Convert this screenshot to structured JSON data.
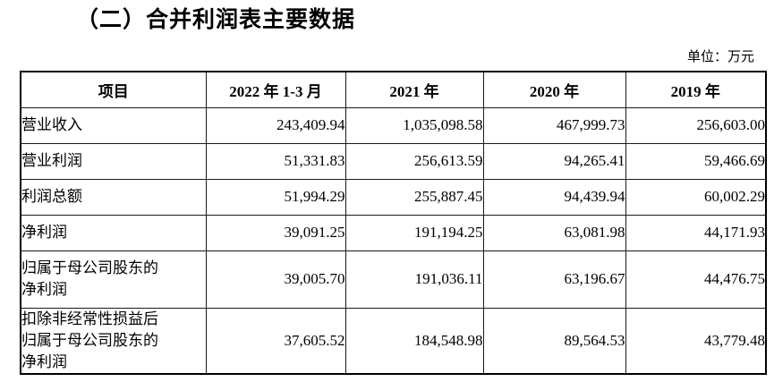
{
  "page": {
    "title": "（二）合并利润表主要数据",
    "unit_label": "单位：万元"
  },
  "table": {
    "headers": [
      "项目",
      "2022 年 1-3 月",
      "2021 年",
      "2020 年",
      "2019 年"
    ],
    "rows": [
      {
        "item": "营业收入",
        "values": [
          "243,409.94",
          "1,035,098.58",
          "467,999.73",
          "256,603.00"
        ]
      },
      {
        "item": "营业利润",
        "values": [
          "51,331.83",
          "256,613.59",
          "94,265.41",
          "59,466.69"
        ]
      },
      {
        "item": "利润总额",
        "values": [
          "51,994.29",
          "255,887.45",
          "94,439.94",
          "60,002.29"
        ]
      },
      {
        "item": "净利润",
        "values": [
          "39,091.25",
          "191,194.25",
          "63,081.98",
          "44,171.93"
        ]
      },
      {
        "item": "归属于母公司股东的\n净利润",
        "values": [
          "39,005.70",
          "191,036.11",
          "63,196.67",
          "44,476.75"
        ]
      },
      {
        "item": "扣除非经常性损益后\n归属于母公司股东的\n净利润",
        "values": [
          "37,605.52",
          "184,548.98",
          "89,564.53",
          "43,779.48"
        ]
      }
    ]
  }
}
